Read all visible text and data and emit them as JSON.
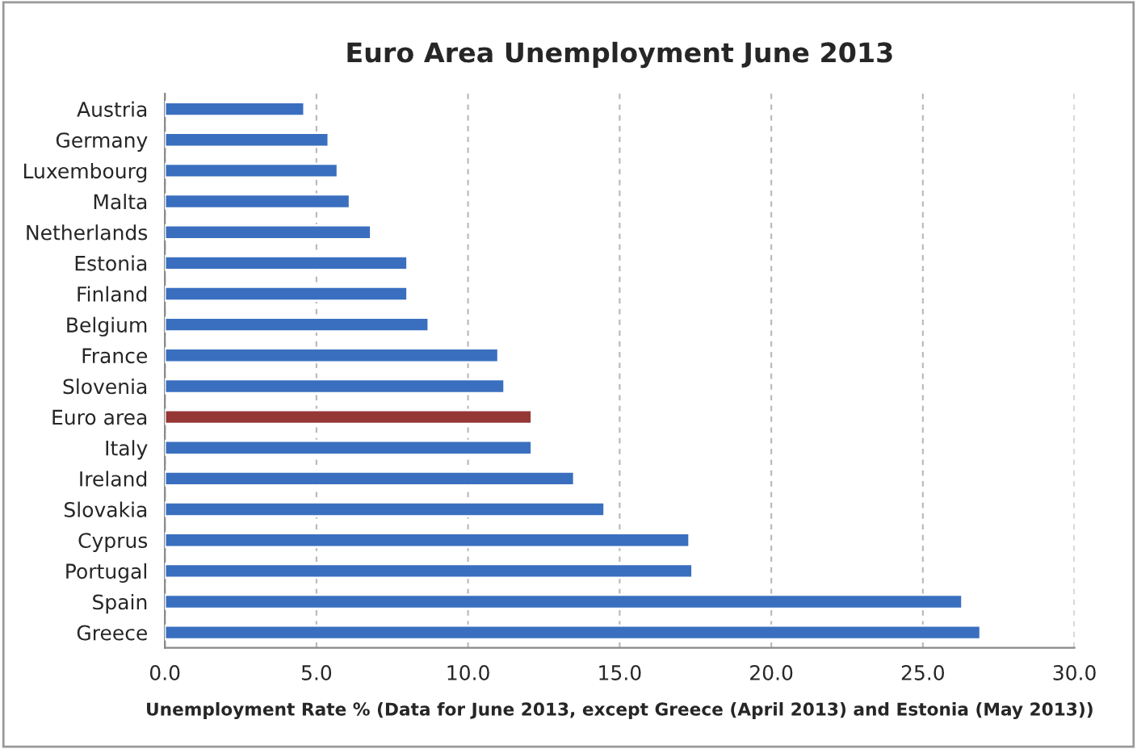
{
  "chart_data": {
    "type": "bar",
    "orientation": "horizontal",
    "title": "Euro Area Unemployment June 2013",
    "xlabel": "Unemployment Rate % (Data for June 2013, except Greece (April 2013) and Estonia (May 2013))",
    "categories": [
      "Austria",
      "Germany",
      "Luxembourg",
      "Malta",
      "Netherlands",
      "Estonia",
      "Finland",
      "Belgium",
      "France",
      "Slovenia",
      "Euro area",
      "Italy",
      "Ireland",
      "Slovakia",
      "Cyprus",
      "Portugal",
      "Spain",
      "Greece"
    ],
    "values": [
      4.6,
      5.4,
      5.7,
      6.1,
      6.8,
      8.0,
      8.0,
      8.7,
      11.0,
      11.2,
      12.1,
      12.1,
      13.5,
      14.5,
      17.3,
      17.4,
      26.3,
      26.9
    ],
    "colors": [
      "#3a6fbf",
      "#3a6fbf",
      "#3a6fbf",
      "#3a6fbf",
      "#3a6fbf",
      "#3a6fbf",
      "#3a6fbf",
      "#3a6fbf",
      "#3a6fbf",
      "#3a6fbf",
      "#953735",
      "#3a6fbf",
      "#3a6fbf",
      "#3a6fbf",
      "#3a6fbf",
      "#3a6fbf",
      "#3a6fbf",
      "#3a6fbf"
    ],
    "xlim": [
      0,
      30
    ],
    "xticks": [
      {
        "value": 0,
        "label": "0.0"
      },
      {
        "value": 5,
        "label": "5.0"
      },
      {
        "value": 10,
        "label": "10.0"
      },
      {
        "value": 15,
        "label": "15.0"
      },
      {
        "value": 20,
        "label": "20.0"
      },
      {
        "value": 25,
        "label": "25.0"
      },
      {
        "value": 30,
        "label": "30.0"
      }
    ],
    "grid": "x",
    "legend": false
  }
}
